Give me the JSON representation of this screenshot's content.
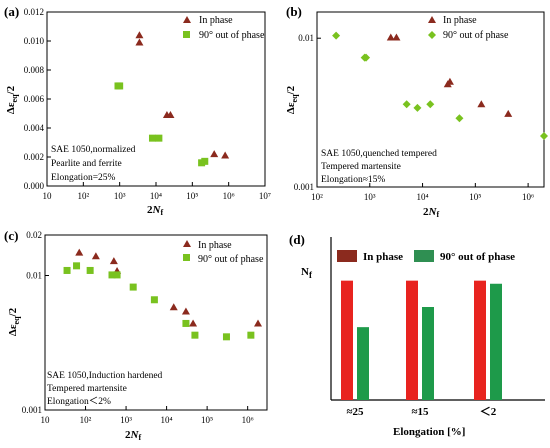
{
  "chart_data": [
    {
      "id": "a",
      "panel_label": "(a)",
      "type": "scatter",
      "x_scale": "log",
      "xlim": [
        10,
        10000000
      ],
      "ylim": [
        0,
        0.012
      ],
      "x_ticks": [
        10,
        100,
        1000,
        10000,
        100000,
        1000000,
        10000000
      ],
      "x_tick_labels": [
        "10",
        "10²",
        "10³",
        "10⁴",
        "10⁵",
        "10⁶",
        "10⁷"
      ],
      "y_ticks": [
        0,
        0.002,
        0.004,
        0.006,
        0.008,
        0.01,
        0.012
      ],
      "y_tick_labels": [
        "0.000",
        "0.002",
        "0.004",
        "0.006",
        "0.008",
        "0.010",
        "0.012"
      ],
      "xlabel": "2Nf",
      "ylabel": "Δεeq/2",
      "series": [
        {
          "name": "In phase",
          "marker": "triangle",
          "color": "#8b2a1e",
          "x": [
            3500,
            3500,
            20000,
            25000,
            400000,
            800000
          ],
          "y": [
            0.0104,
            0.0099,
            0.0049,
            0.0049,
            0.0022,
            0.0021
          ]
        },
        {
          "name": "90° out of phase",
          "marker": "square",
          "color": "#79c21f",
          "x": [
            900,
            1000,
            8000,
            12000,
            180000,
            220000
          ],
          "y": [
            0.0069,
            0.0069,
            0.0033,
            0.0033,
            0.0016,
            0.0017
          ]
        }
      ],
      "annotation_lines": [
        "SAE 1050,normalized",
        "Pearlite and ferrite",
        "Elongation=25%"
      ]
    },
    {
      "id": "b",
      "panel_label": "(b)",
      "type": "scatter",
      "x_scale": "log",
      "y_scale": "log",
      "xlim": [
        100,
        2000000
      ],
      "ylim": [
        0.001,
        0.015
      ],
      "x_ticks": [
        100,
        1000,
        10000,
        100000,
        1000000
      ],
      "x_tick_labels": [
        "10²",
        "10³",
        "10⁴",
        "10⁵",
        "10⁶"
      ],
      "y_ticks": [
        0.001,
        0.01
      ],
      "y_tick_labels": [
        "0.001",
        "0.01"
      ],
      "xlabel": "2Nf",
      "ylabel": "Δεeq/2",
      "series": [
        {
          "name": "In phase",
          "marker": "triangle",
          "color": "#8b2a1e",
          "x": [
            2500,
            3200,
            30000,
            33000,
            130000,
            420000
          ],
          "y": [
            0.0101,
            0.0101,
            0.0049,
            0.0051,
            0.0036,
            0.0031
          ]
        },
        {
          "name": "90° out of phase",
          "marker": "diamond",
          "color": "#79c21f",
          "x": [
            230,
            800,
            850,
            5000,
            8000,
            14000,
            50000,
            2000000
          ],
          "y": [
            0.0104,
            0.0074,
            0.0074,
            0.0036,
            0.0034,
            0.0036,
            0.0029,
            0.0022
          ]
        }
      ],
      "annotation_lines": [
        "SAE 1050,quenched tempered",
        "Tempered martensite",
        "Elongation≈15%"
      ]
    },
    {
      "id": "c",
      "panel_label": "(c)",
      "type": "scatter",
      "x_scale": "log",
      "y_scale": "log",
      "xlim": [
        10,
        3000000
      ],
      "ylim": [
        0.001,
        0.02
      ],
      "x_ticks": [
        10,
        100,
        1000,
        10000,
        100000,
        1000000
      ],
      "x_tick_labels": [
        "10",
        "10²",
        "10³",
        "10⁴",
        "10⁵",
        "10⁶"
      ],
      "y_ticks": [
        0.001,
        0.01,
        0.02
      ],
      "y_tick_labels": [
        "0.001",
        "0.01",
        "0.02"
      ],
      "xlabel": "2Nf",
      "ylabel": "Δεeq/2",
      "series": [
        {
          "name": "In phase",
          "marker": "triangle",
          "color": "#8b2a1e",
          "x": [
            70,
            180,
            500,
            600,
            15000,
            30000,
            45000,
            1800000
          ],
          "y": [
            0.0148,
            0.0139,
            0.0128,
            0.0108,
            0.0058,
            0.0054,
            0.0044,
            0.0044
          ]
        },
        {
          "name": "90° out of phase",
          "marker": "square",
          "color": "#79c21f",
          "x": [
            35,
            60,
            130,
            450,
            600,
            1500,
            5000,
            30000,
            50000,
            300000,
            1200000
          ],
          "y": [
            0.0109,
            0.0118,
            0.0109,
            0.0101,
            0.0101,
            0.0082,
            0.0066,
            0.0044,
            0.0036,
            0.0035,
            0.0036
          ]
        }
      ],
      "annotation_lines": [
        "SAE 1050,Induction hardened",
        "Tempered martensite",
        "Elongation＜2%"
      ]
    },
    {
      "id": "d",
      "panel_label": "(d)",
      "type": "bar",
      "categories": [
        "≈25",
        "≈15",
        "＜2"
      ],
      "series": [
        {
          "name": "In phase",
          "color": "#e8231f",
          "legend_color": "#8b2a1e",
          "values": [
            0.77,
            0.77,
            0.77
          ]
        },
        {
          "name": "90° out of phase",
          "color": "#1e9a4a",
          "legend_color": "#2f8f52",
          "values": [
            0.47,
            0.6,
            0.75
          ]
        }
      ],
      "ylim": [
        0,
        1
      ],
      "xlabel": "Elongation [%]",
      "ylabel": "Nf"
    }
  ]
}
